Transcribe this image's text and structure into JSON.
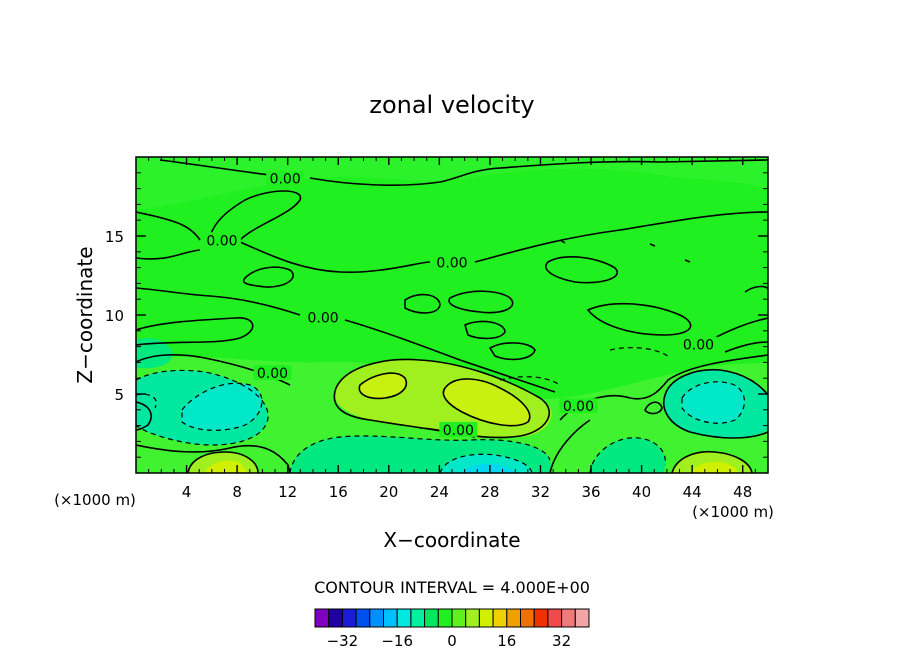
{
  "chart_data": {
    "type": "contour",
    "title": "zonal velocity",
    "xlabel": "X−coordinate",
    "ylabel": "Z−coordinate",
    "x_unit": "(×1000 m)",
    "y_unit": "(×1000 m)",
    "xlim": [
      0,
      50
    ],
    "ylim": [
      0,
      20
    ],
    "x_ticks": [
      "4",
      "8",
      "12",
      "16",
      "20",
      "24",
      "28",
      "32",
      "36",
      "40",
      "44",
      "48"
    ],
    "x_tick_values": [
      4,
      8,
      12,
      16,
      20,
      24,
      28,
      32,
      36,
      40,
      44,
      48
    ],
    "y_ticks": [
      "5",
      "10",
      "15"
    ],
    "y_tick_values": [
      5,
      10,
      15
    ],
    "contour_label": "0.00",
    "contour_label_positions": [
      {
        "x": 11.8,
        "z": 18.5
      },
      {
        "x": 6.8,
        "z": 14.6
      },
      {
        "x": 25.0,
        "z": 13.2
      },
      {
        "x": 14.8,
        "z": 9.7
      },
      {
        "x": 10.8,
        "z": 6.2
      },
      {
        "x": 25.5,
        "z": 2.6
      },
      {
        "x": 35.0,
        "z": 4.1
      },
      {
        "x": 44.5,
        "z": 8.0
      }
    ],
    "interval_text": "CONTOUR INTERVAL = 4.000E+00",
    "colorbar": {
      "colors": [
        "#7f00c0",
        "#2000a0",
        "#1c1cd8",
        "#0050f0",
        "#0090ff",
        "#00c0ff",
        "#00e8e0",
        "#00f0a0",
        "#00e860",
        "#20f020",
        "#60f020",
        "#a0f020",
        "#d0f000",
        "#f0d000",
        "#f0a000",
        "#f07000",
        "#f03000",
        "#f04a4a",
        "#f07a7a",
        "#f0a4a4"
      ],
      "tick_labels": [
        "−32",
        "−16",
        "0",
        "16",
        "32"
      ],
      "tick_values": [
        -32,
        -16,
        0,
        16,
        32
      ],
      "min": -40,
      "max": 40
    },
    "features": [
      {
        "kind": "background",
        "value": 0
      },
      {
        "kind": "max",
        "x": 27.5,
        "z": 4.5,
        "value": 10
      },
      {
        "kind": "max",
        "x": 19.5,
        "z": 5.8,
        "value": 6
      },
      {
        "kind": "min",
        "x": 7.0,
        "z": 4.0,
        "value": -12
      },
      {
        "kind": "min",
        "x": 44.5,
        "z": 4.5,
        "value": -8
      },
      {
        "kind": "min",
        "x": 27.0,
        "z": 0.5,
        "value": -12
      },
      {
        "kind": "max",
        "x": 7.0,
        "z": 0.6,
        "value": 8
      },
      {
        "kind": "max",
        "x": 45.5,
        "z": 0.4,
        "value": 8
      },
      {
        "kind": "min",
        "x": 20.0,
        "z": 1.5,
        "value": -6
      },
      {
        "kind": "min",
        "x": 40.0,
        "z": 2.0,
        "value": -4
      }
    ]
  }
}
